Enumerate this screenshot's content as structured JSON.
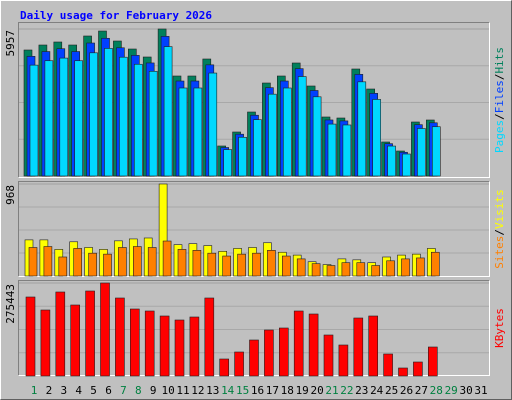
{
  "title": "Daily usage for February 2026",
  "legend_separator": "/",
  "categories": [
    "1",
    "2",
    "3",
    "4",
    "5",
    "6",
    "7",
    "8",
    "9",
    "10",
    "11",
    "12",
    "13",
    "14",
    "15",
    "16",
    "17",
    "18",
    "19",
    "20",
    "21",
    "22",
    "23",
    "24",
    "25",
    "26",
    "27",
    "28",
    "29",
    "30",
    "31"
  ],
  "label_colors": [
    "#008040",
    "#000000",
    "#000000",
    "#000000",
    "#000000",
    "#000000",
    "#008040",
    "#008040",
    "#000000",
    "#000000",
    "#000000",
    "#000000",
    "#000000",
    "#008040",
    "#008040",
    "#000000",
    "#000000",
    "#000000",
    "#000000",
    "#000000",
    "#008040",
    "#008040",
    "#000000",
    "#000000",
    "#000000",
    "#000000",
    "#000000",
    "#008040",
    "#008040",
    "#000000",
    "#000000"
  ],
  "chart_data": [
    {
      "type": "bar",
      "ylim": [
        0,
        5957
      ],
      "yticks": [
        5957
      ],
      "series": [
        {
          "name": "Hits",
          "color": "#00805c",
          "values": [
            5106,
            5308,
            5430,
            5308,
            5673,
            5875,
            5470,
            5146,
            4822,
            5957,
            4052,
            4052,
            4741,
            1216,
            1783,
            2593,
            3768,
            4052,
            4579,
            3647,
            2391,
            2350,
            4336,
            3525,
            1378,
            1013,
            2188,
            2269,
            null,
            null,
            null
          ]
        },
        {
          "name": "Files",
          "color": "#0040ff",
          "values": [
            4850,
            5043,
            5158,
            5043,
            5389,
            5581,
            5196,
            4889,
            4581,
            5659,
            3849,
            3849,
            4504,
            1155,
            1694,
            2463,
            3580,
            3849,
            4350,
            3465,
            2271,
            2232,
            4119,
            3349,
            1309,
            962,
            2079,
            2156,
            null,
            null,
            null
          ]
        },
        {
          "name": "Pages",
          "color": "#00d8ff",
          "values": [
            4493,
            4671,
            4778,
            4671,
            4992,
            5170,
            4814,
            4528,
            4243,
            5242,
            3566,
            3566,
            4172,
            1070,
            1569,
            2282,
            3316,
            3566,
            4030,
            3209,
            2104,
            2068,
            3816,
            3102,
            1213,
            891,
            1925,
            1997,
            null,
            null,
            null
          ]
        }
      ]
    },
    {
      "type": "bar",
      "ylim": [
        0,
        968
      ],
      "yticks": [
        968
      ],
      "series": [
        {
          "name": "Visits",
          "color": "#ffff00",
          "values": [
            380,
            380,
            280,
            360,
            300,
            280,
            370,
            390,
            400,
            968,
            330,
            340,
            320,
            260,
            290,
            300,
            350,
            250,
            220,
            150,
            120,
            180,
            170,
            140,
            200,
            220,
            230,
            290,
            null,
            null,
            null
          ]
        },
        {
          "name": "Sites",
          "color": "#ff8000",
          "values": [
            300,
            310,
            200,
            290,
            240,
            230,
            300,
            310,
            300,
            368,
            280,
            270,
            240,
            210,
            230,
            240,
            270,
            210,
            180,
            130,
            110,
            140,
            140,
            110,
            160,
            180,
            190,
            250,
            null,
            null,
            null
          ]
        }
      ]
    },
    {
      "type": "bar",
      "ylim": [
        0,
        275443
      ],
      "yticks": [
        275443
      ],
      "series": [
        {
          "name": "KBytes",
          "color": "#ff0000",
          "values": [
            233975,
            195472,
            248783,
            210281,
            251745,
            275443,
            231013,
            198434,
            192511,
            177702,
            165856,
            174740,
            231013,
            50349,
            71081,
            106621,
            136238,
            142162,
            192511,
            183625,
            121430,
            91813,
            171779,
            177702,
            65157,
            23694,
            41464,
            85889,
            null,
            null,
            null
          ]
        }
      ]
    }
  ]
}
